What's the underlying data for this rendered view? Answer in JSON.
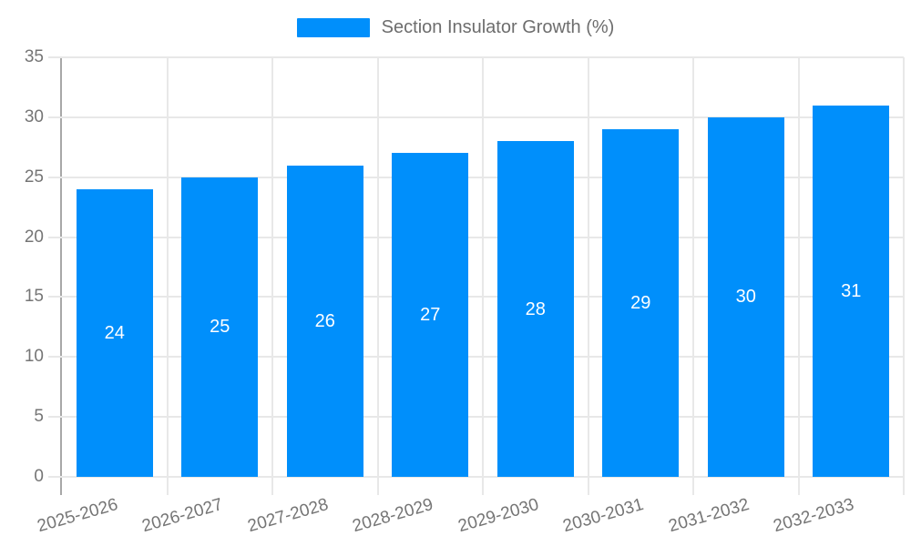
{
  "legend": {
    "label": "Section Insulator Growth (%)"
  },
  "chart_data": {
    "type": "bar",
    "title": "Section Insulator Growth (%)",
    "series_name": "Section Insulator Growth (%)",
    "categories": [
      "2025-2026",
      "2026-2027",
      "2027-2028",
      "2028-2029",
      "2029-2030",
      "2030-2031",
      "2031-2032",
      "2032-2033"
    ],
    "values": [
      24,
      25,
      26,
      27,
      28,
      29,
      30,
      31
    ],
    "bar_labels": [
      "24",
      "25",
      "26",
      "27",
      "28",
      "29",
      "30",
      "31"
    ],
    "xlabel": "",
    "ylabel": "",
    "ylim": [
      0,
      35
    ],
    "yticks": [
      0,
      5,
      10,
      15,
      20,
      25,
      30,
      35
    ],
    "grid": true,
    "legend_position": "top",
    "colors": {
      "bar": "#008FFB",
      "bar_label": "#ffffff",
      "grid": "#e8e8e8",
      "axis_line": "#a8a8a8",
      "tick_label": "#757575",
      "legend_text": "#6d6d6d",
      "background": "#ffffff"
    }
  }
}
